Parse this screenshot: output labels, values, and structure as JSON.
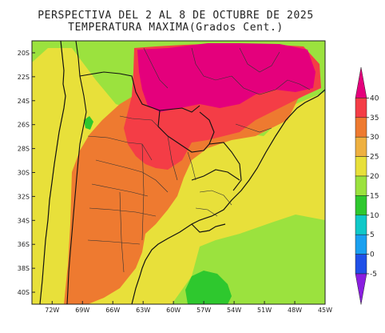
{
  "title": {
    "line1": "PERSPECTIVA DEL 2 AL 8 DE OCTUBRE DE 2025",
    "line2": "TEMPERATURA MAXIMA(Grados Cent.)"
  },
  "map": {
    "lon_range": [
      -74,
      -45
    ],
    "lat_range": [
      -41,
      -19
    ],
    "lat_ticks": [
      "20S",
      "22S",
      "24S",
      "26S",
      "28S",
      "30S",
      "32S",
      "34S",
      "36S",
      "38S",
      "40S"
    ],
    "lon_ticks": [
      "72W",
      "69W",
      "66W",
      "63W",
      "60W",
      "57W",
      "54W",
      "51W",
      "48W",
      "45W"
    ]
  },
  "colorbar": {
    "labels": [
      "40",
      "35",
      "30",
      "25",
      "20",
      "15",
      "10",
      "5",
      "0",
      "-5"
    ],
    "bands": [
      {
        "from": 40,
        "to": 45,
        "color": "#e4007c"
      },
      {
        "from": 35,
        "to": 40,
        "color": "#f43d46"
      },
      {
        "from": 30,
        "to": 35,
        "color": "#ee7a30"
      },
      {
        "from": 25,
        "to": 30,
        "color": "#eeb040"
      },
      {
        "from": 20,
        "to": 25,
        "color": "#e8e03a"
      },
      {
        "from": 15,
        "to": 20,
        "color": "#9be23e"
      },
      {
        "from": 10,
        "to": 15,
        "color": "#2ec82e"
      },
      {
        "from": 5,
        "to": 10,
        "color": "#10c8c8"
      },
      {
        "from": 0,
        "to": 5,
        "color": "#1aa0f0"
      },
      {
        "from": -5,
        "to": 0,
        "color": "#2050e8"
      },
      {
        "from": -10,
        "to": -5,
        "color": "#8a1ee0"
      }
    ]
  }
}
